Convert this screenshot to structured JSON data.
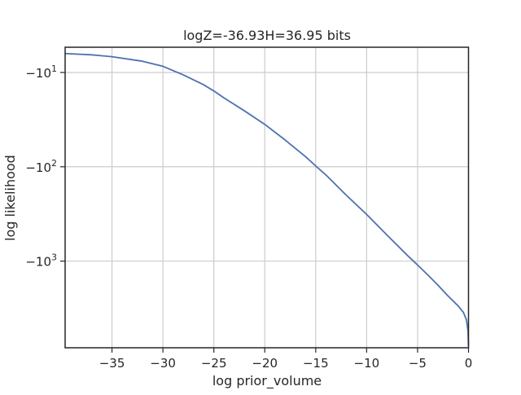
{
  "chart_data": {
    "type": "line",
    "title": "logZ=-36.93H=36.95 bits",
    "xlabel": "log prior_volume",
    "ylabel": "log likelihood",
    "xlim": [
      -39.6,
      0
    ],
    "x_ticks": [
      -35,
      -30,
      -25,
      -20,
      -15,
      -10,
      -5,
      0
    ],
    "x_tick_labels": [
      "−35",
      "−30",
      "−25",
      "−20",
      "−15",
      "−10",
      "−5",
      "0"
    ],
    "yscale": "symlog",
    "y_ticks": [
      -10,
      -100,
      -1000
    ],
    "y_tick_label_base": "−10",
    "y_tick_label_exponents": [
      "1",
      "2",
      "3"
    ],
    "ylim": [
      -5.4,
      -8300
    ],
    "grid": true,
    "series": [
      {
        "color": "#4c72b0",
        "x": [
          -39.6,
          -37,
          -35,
          -32,
          -30,
          -28,
          -26,
          -25,
          -24,
          -22,
          -20,
          -18,
          -16,
          -15,
          -14,
          -12,
          -10,
          -8,
          -6,
          -5,
          -4,
          -3,
          -2,
          -1,
          -0.5,
          -0.2,
          -0.05,
          0
        ],
        "y": [
          -6.3,
          -6.5,
          -6.8,
          -7.6,
          -8.6,
          -10.6,
          -13.5,
          -15.7,
          -18.6,
          -25.5,
          -35.5,
          -52,
          -78,
          -98,
          -122,
          -200,
          -320,
          -530,
          -870,
          -1100,
          -1400,
          -1800,
          -2350,
          -3000,
          -3500,
          -4200,
          -5500,
          -8000
        ]
      }
    ]
  }
}
